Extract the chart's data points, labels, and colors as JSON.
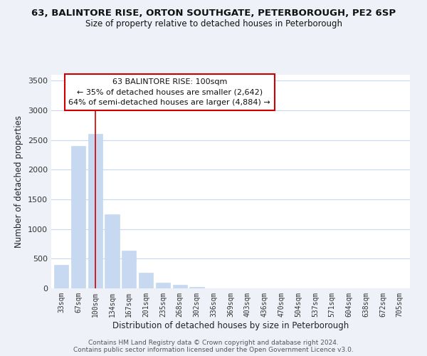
{
  "title": "63, BALINTORE RISE, ORTON SOUTHGATE, PETERBOROUGH, PE2 6SP",
  "subtitle": "Size of property relative to detached houses in Peterborough",
  "xlabel": "Distribution of detached houses by size in Peterborough",
  "ylabel": "Number of detached properties",
  "categories": [
    "33sqm",
    "67sqm",
    "100sqm",
    "134sqm",
    "167sqm",
    "201sqm",
    "235sqm",
    "268sqm",
    "302sqm",
    "336sqm",
    "369sqm",
    "403sqm",
    "436sqm",
    "470sqm",
    "504sqm",
    "537sqm",
    "571sqm",
    "604sqm",
    "638sqm",
    "672sqm",
    "705sqm"
  ],
  "values": [
    400,
    2400,
    2600,
    1250,
    640,
    260,
    100,
    55,
    30,
    0,
    0,
    0,
    0,
    0,
    0,
    0,
    0,
    0,
    0,
    0,
    0
  ],
  "bar_color": "#c6d9f0",
  "vline_x": 2,
  "vline_color": "#cc0000",
  "annotation_title": "63 BALINTORE RISE: 100sqm",
  "annotation_line1": "← 35% of detached houses are smaller (2,642)",
  "annotation_line2": "64% of semi-detached houses are larger (4,884) →",
  "annotation_box_color": "#ffffff",
  "annotation_box_edge": "#cc0000",
  "ylim": [
    0,
    3600
  ],
  "yticks": [
    0,
    500,
    1000,
    1500,
    2000,
    2500,
    3000,
    3500
  ],
  "footer_line1": "Contains HM Land Registry data © Crown copyright and database right 2024.",
  "footer_line2": "Contains public sector information licensed under the Open Government Licence v3.0.",
  "background_color": "#eef2f8",
  "plot_bg_color": "#ffffff",
  "grid_color": "#c8d8ee"
}
